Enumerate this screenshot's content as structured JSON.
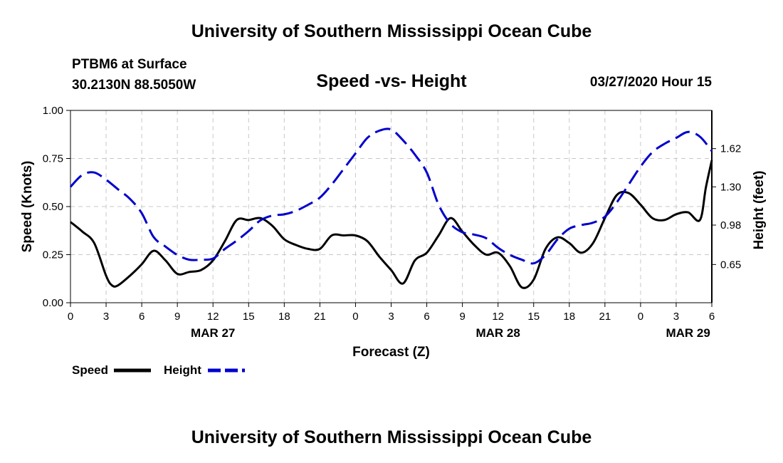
{
  "header": {
    "title": "University of Southern Mississippi Ocean Cube",
    "station": "PTBM6 at Surface",
    "coords": "30.2130N 88.5050W",
    "subtitle": "Speed -vs- Height",
    "datetime": "03/27/2020 Hour 15"
  },
  "footer": {
    "title": "University of Southern Mississippi Ocean Cube"
  },
  "colors": {
    "speed": "#000000",
    "height": "#0000cc",
    "grid": "#c8c8c8"
  },
  "chart_data": {
    "type": "line",
    "title": "Speed -vs- Height",
    "xlabel": "Forecast (Z)",
    "ylabel": "Speed (Knots)",
    "y2label": "Height (feet)",
    "xlim": [
      0,
      54
    ],
    "ylim": [
      0,
      1
    ],
    "y2lim": [
      0.33,
      1.94
    ],
    "x_ticks": [
      0,
      3,
      6,
      9,
      12,
      15,
      18,
      21,
      24,
      27,
      30,
      33,
      36,
      39,
      42,
      45,
      48,
      51,
      54
    ],
    "x_tick_labels": [
      "0",
      "3",
      "6",
      "9",
      "12",
      "15",
      "18",
      "21",
      "0",
      "3",
      "6",
      "9",
      "12",
      "15",
      "18",
      "21",
      "0",
      "3",
      "6"
    ],
    "date_labels": [
      {
        "x": 12,
        "label": "MAR 27"
      },
      {
        "x": 36,
        "label": "MAR 28"
      },
      {
        "x": 52,
        "label": "MAR 29"
      }
    ],
    "y_ticks": [
      0,
      0.25,
      0.5,
      0.75,
      1.0
    ],
    "y_tick_labels": [
      "0.00",
      "0.25",
      "0.50",
      "0.75",
      "1.00"
    ],
    "y2_ticks": [
      0.65,
      0.98,
      1.3,
      1.62
    ],
    "y2_tick_labels": [
      "0.65",
      "0.98",
      "1.30",
      "1.62"
    ],
    "legend": [
      {
        "name": "Speed",
        "style": "solid"
      },
      {
        "name": "Height",
        "style": "dashed"
      }
    ],
    "series": [
      {
        "name": "Speed",
        "axis": "left",
        "x": [
          0,
          1,
          2,
          3,
          3.5,
          4,
          5,
          6,
          7,
          8,
          9,
          10,
          11,
          12,
          13,
          14,
          15,
          16,
          17,
          18,
          19,
          20,
          21,
          22,
          23,
          24,
          25,
          26,
          27,
          28,
          29,
          30,
          31,
          32,
          33,
          34,
          35,
          36,
          37,
          38,
          39,
          40,
          41,
          42,
          43,
          44,
          45,
          46,
          47,
          48,
          49,
          50,
          51,
          52,
          53,
          53.5,
          54
        ],
        "values": [
          0.42,
          0.37,
          0.31,
          0.14,
          0.09,
          0.09,
          0.14,
          0.2,
          0.27,
          0.22,
          0.15,
          0.16,
          0.17,
          0.22,
          0.32,
          0.43,
          0.43,
          0.44,
          0.4,
          0.33,
          0.3,
          0.28,
          0.28,
          0.35,
          0.35,
          0.35,
          0.32,
          0.24,
          0.17,
          0.1,
          0.22,
          0.26,
          0.35,
          0.44,
          0.37,
          0.3,
          0.25,
          0.26,
          0.19,
          0.08,
          0.12,
          0.28,
          0.34,
          0.31,
          0.26,
          0.31,
          0.44,
          0.56,
          0.57,
          0.51,
          0.44,
          0.43,
          0.46,
          0.47,
          0.43,
          0.6,
          0.74
        ]
      },
      {
        "name": "Height",
        "axis": "right",
        "x": [
          0,
          1,
          2,
          3,
          4,
          5,
          6,
          7,
          8,
          9,
          10,
          11,
          12,
          13,
          14,
          15,
          16,
          17,
          18,
          19,
          20,
          21,
          22,
          23,
          24,
          25,
          26,
          27,
          28,
          29,
          30,
          31,
          32,
          33,
          34,
          35,
          36,
          37,
          38,
          39,
          40,
          41,
          42,
          43,
          44,
          45,
          46,
          47,
          48,
          49,
          50,
          51,
          52,
          53,
          54
        ],
        "values": [
          1.3,
          1.4,
          1.42,
          1.36,
          1.28,
          1.2,
          1.08,
          0.88,
          0.8,
          0.73,
          0.69,
          0.69,
          0.7,
          0.78,
          0.85,
          0.93,
          1.02,
          1.06,
          1.07,
          1.1,
          1.15,
          1.21,
          1.32,
          1.45,
          1.58,
          1.71,
          1.77,
          1.78,
          1.69,
          1.57,
          1.42,
          1.15,
          0.99,
          0.92,
          0.9,
          0.87,
          0.79,
          0.73,
          0.69,
          0.66,
          0.73,
          0.86,
          0.95,
          0.98,
          1.0,
          1.05,
          1.17,
          1.32,
          1.47,
          1.59,
          1.66,
          1.71,
          1.76,
          1.72,
          1.6
        ]
      }
    ]
  }
}
